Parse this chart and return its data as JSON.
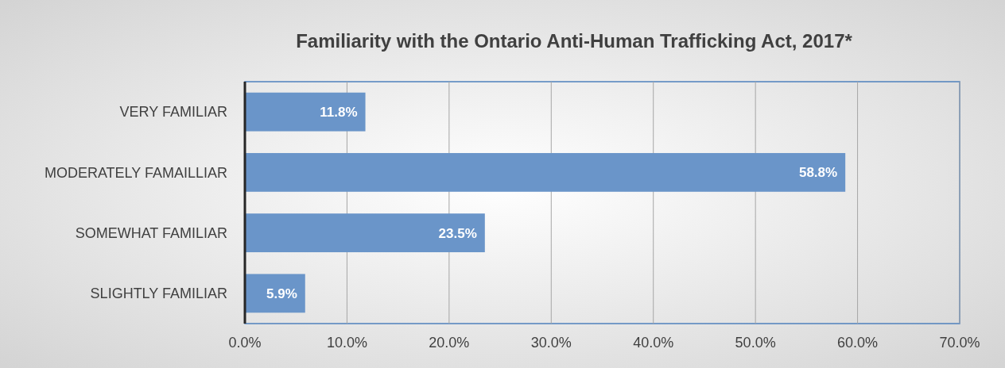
{
  "chart_data": {
    "type": "bar",
    "orientation": "horizontal",
    "title": "Familiarity with the Ontario Anti-Human Trafficking Act, 2017*",
    "categories": [
      "VERY FAMILIAR",
      "MODERATELY FAMAILLIAR",
      "SOMEWHAT FAMILIAR",
      "SLIGHTLY FAMILIAR"
    ],
    "values": [
      11.8,
      58.8,
      23.5,
      5.9
    ],
    "value_labels": [
      "11.8%",
      "58.8%",
      "23.5%",
      "5.9%"
    ],
    "color": "#6a95c9",
    "xlim": [
      0,
      70
    ],
    "xticks": [
      {
        "value": 0,
        "label": "0.0%"
      },
      {
        "value": 10,
        "label": "10.0%"
      },
      {
        "value": 20,
        "label": "20.0%"
      },
      {
        "value": 30,
        "label": "30.0%"
      },
      {
        "value": 40,
        "label": "40.0%"
      },
      {
        "value": 50,
        "label": "50.0%"
      },
      {
        "value": 60,
        "label": "60.0%"
      },
      {
        "value": 70,
        "label": "70.0%"
      }
    ],
    "grid": "x"
  }
}
